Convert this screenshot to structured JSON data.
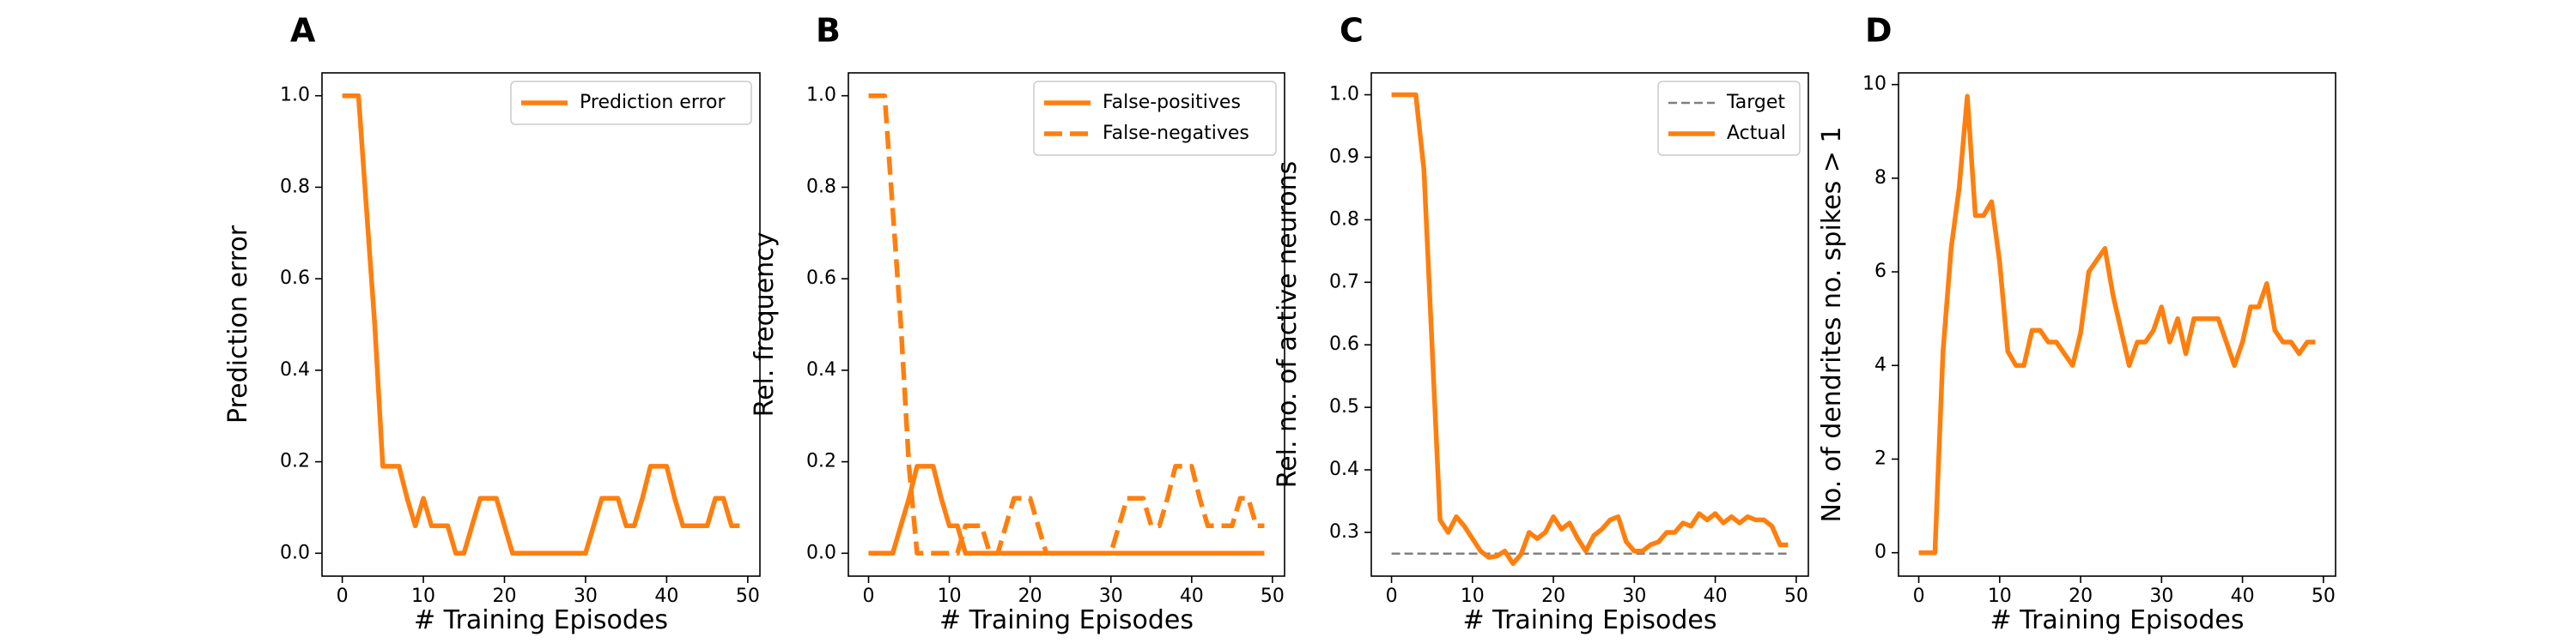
{
  "colors": {
    "orange": "#ff7f0e",
    "target_gray": "#808080",
    "axes": "#000000"
  },
  "chart_data": [
    {
      "panel": "A",
      "type": "line",
      "xlabel": "# Training Episodes",
      "ylabel": "Prediction error",
      "xlim": [
        -2.5,
        51.5
      ],
      "ylim": [
        -0.05,
        1.05
      ],
      "xticks": [
        0,
        10,
        20,
        30,
        40,
        50
      ],
      "yticks": [
        0.0,
        0.2,
        0.4,
        0.6,
        0.8,
        1.0
      ],
      "ytick_labels": [
        "0.0",
        "0.2",
        "0.4",
        "0.6",
        "0.8",
        "1.0"
      ],
      "legend_position": "upper right",
      "series": [
        {
          "name": "Prediction error",
          "style": "solid",
          "x": [
            0,
            1,
            2,
            3,
            4,
            5,
            6,
            7,
            8,
            9,
            10,
            11,
            12,
            13,
            14,
            15,
            16,
            17,
            18,
            19,
            20,
            21,
            22,
            23,
            24,
            25,
            26,
            27,
            28,
            29,
            30,
            31,
            32,
            33,
            34,
            35,
            36,
            37,
            38,
            39,
            40,
            41,
            42,
            43,
            44,
            45,
            46,
            47,
            48,
            49
          ],
          "y": [
            1.0,
            1.0,
            1.0,
            0.75,
            0.5,
            0.19,
            0.19,
            0.19,
            0.12,
            0.06,
            0.12,
            0.06,
            0.06,
            0.06,
            0.0,
            0.0,
            0.06,
            0.12,
            0.12,
            0.12,
            0.06,
            0.0,
            0.0,
            0.0,
            0.0,
            0.0,
            0.0,
            0.0,
            0.0,
            0.0,
            0.0,
            0.06,
            0.12,
            0.12,
            0.12,
            0.06,
            0.06,
            0.12,
            0.19,
            0.19,
            0.19,
            0.12,
            0.06,
            0.06,
            0.06,
            0.06,
            0.12,
            0.12,
            0.06,
            0.06
          ]
        }
      ]
    },
    {
      "panel": "B",
      "type": "line",
      "xlabel": "# Training Episodes",
      "ylabel": "Rel. frequency",
      "xlim": [
        -2.5,
        51.5
      ],
      "ylim": [
        -0.05,
        1.05
      ],
      "xticks": [
        0,
        10,
        20,
        30,
        40,
        50
      ],
      "yticks": [
        0.0,
        0.2,
        0.4,
        0.6,
        0.8,
        1.0
      ],
      "ytick_labels": [
        "0.0",
        "0.2",
        "0.4",
        "0.6",
        "0.8",
        "1.0"
      ],
      "legend_position": "upper right",
      "series": [
        {
          "name": "False-positives",
          "style": "solid",
          "x": [
            0,
            1,
            2,
            3,
            4,
            5,
            6,
            7,
            8,
            9,
            10,
            11,
            12,
            13,
            14,
            15,
            16,
            17,
            18,
            19,
            20,
            21,
            22,
            23,
            24,
            25,
            26,
            27,
            28,
            29,
            30,
            31,
            32,
            33,
            34,
            35,
            36,
            37,
            38,
            39,
            40,
            41,
            42,
            43,
            44,
            45,
            46,
            47,
            48,
            49
          ],
          "y": [
            0.0,
            0.0,
            0.0,
            0.0,
            0.06,
            0.12,
            0.19,
            0.19,
            0.19,
            0.12,
            0.06,
            0.06,
            0.0,
            0.0,
            0.0,
            0.0,
            0.0,
            0.0,
            0.0,
            0.0,
            0.0,
            0.0,
            0.0,
            0.0,
            0.0,
            0.0,
            0.0,
            0.0,
            0.0,
            0.0,
            0.0,
            0.0,
            0.0,
            0.0,
            0.0,
            0.0,
            0.0,
            0.0,
            0.0,
            0.0,
            0.0,
            0.0,
            0.0,
            0.0,
            0.0,
            0.0,
            0.0,
            0.0,
            0.0,
            0.0
          ]
        },
        {
          "name": "False-negatives",
          "style": "dashed",
          "x": [
            0,
            1,
            2,
            3,
            4,
            5,
            6,
            7,
            8,
            9,
            10,
            11,
            12,
            13,
            14,
            15,
            16,
            17,
            18,
            19,
            20,
            21,
            22,
            23,
            24,
            25,
            26,
            27,
            28,
            29,
            30,
            31,
            32,
            33,
            34,
            35,
            36,
            37,
            38,
            39,
            40,
            41,
            42,
            43,
            44,
            45,
            46,
            47,
            48,
            49
          ],
          "y": [
            1.0,
            1.0,
            1.0,
            0.75,
            0.5,
            0.19,
            0.0,
            0.0,
            0.0,
            0.0,
            0.0,
            0.0,
            0.06,
            0.06,
            0.06,
            0.0,
            0.0,
            0.06,
            0.12,
            0.12,
            0.12,
            0.06,
            0.0,
            0.0,
            0.0,
            0.0,
            0.0,
            0.0,
            0.0,
            0.0,
            0.0,
            0.06,
            0.12,
            0.12,
            0.12,
            0.06,
            0.06,
            0.12,
            0.19,
            0.19,
            0.19,
            0.12,
            0.06,
            0.06,
            0.06,
            0.06,
            0.12,
            0.12,
            0.06,
            0.06
          ]
        }
      ]
    },
    {
      "panel": "C",
      "type": "line",
      "xlabel": "# Training Episodes",
      "ylabel": "Rel. no. of active neurons",
      "xlim": [
        -2.5,
        51.5
      ],
      "ylim": [
        0.23,
        1.035
      ],
      "xticks": [
        0,
        10,
        20,
        30,
        40,
        50
      ],
      "yticks": [
        0.3,
        0.4,
        0.5,
        0.6,
        0.7,
        0.8,
        0.9,
        1.0
      ],
      "ytick_labels": [
        "0.3",
        "0.4",
        "0.5",
        "0.6",
        "0.7",
        "0.8",
        "0.9",
        "1.0"
      ],
      "legend_position": "upper right",
      "series": [
        {
          "name": "Target",
          "style": "dashed-thin",
          "x": [
            0,
            49
          ],
          "y": [
            0.266,
            0.266
          ]
        },
        {
          "name": "Actual",
          "style": "solid",
          "x": [
            0,
            1,
            2,
            3,
            4,
            5,
            6,
            7,
            8,
            9,
            10,
            11,
            12,
            13,
            14,
            15,
            16,
            17,
            18,
            19,
            20,
            21,
            22,
            23,
            24,
            25,
            26,
            27,
            28,
            29,
            30,
            31,
            32,
            33,
            34,
            35,
            36,
            37,
            38,
            39,
            40,
            41,
            42,
            43,
            44,
            45,
            46,
            47,
            48,
            49
          ],
          "y": [
            1.0,
            1.0,
            1.0,
            1.0,
            0.88,
            0.6,
            0.32,
            0.3,
            0.325,
            0.31,
            0.29,
            0.27,
            0.26,
            0.262,
            0.27,
            0.25,
            0.265,
            0.3,
            0.29,
            0.3,
            0.325,
            0.305,
            0.315,
            0.29,
            0.27,
            0.295,
            0.305,
            0.32,
            0.325,
            0.285,
            0.27,
            0.27,
            0.28,
            0.285,
            0.3,
            0.3,
            0.315,
            0.31,
            0.33,
            0.32,
            0.33,
            0.315,
            0.325,
            0.315,
            0.325,
            0.32,
            0.32,
            0.31,
            0.28,
            0.28
          ]
        }
      ]
    },
    {
      "panel": "D",
      "type": "line",
      "xlabel": "# Training Episodes",
      "ylabel": "No. of dendrites no. spikes > 1",
      "xlim": [
        -2.5,
        51.5
      ],
      "ylim": [
        -0.5,
        10.25
      ],
      "xticks": [
        0,
        10,
        20,
        30,
        40,
        50
      ],
      "yticks": [
        0,
        2,
        4,
        6,
        8,
        10
      ],
      "ytick_labels": [
        "0",
        "2",
        "4",
        "6",
        "8",
        "10"
      ],
      "legend_position": "",
      "series": [
        {
          "name": "",
          "style": "solid",
          "x": [
            0,
            1,
            2,
            3,
            4,
            5,
            6,
            7,
            8,
            9,
            10,
            11,
            12,
            13,
            14,
            15,
            16,
            17,
            18,
            19,
            20,
            21,
            22,
            23,
            24,
            25,
            26,
            27,
            28,
            29,
            30,
            31,
            32,
            33,
            34,
            35,
            36,
            37,
            38,
            39,
            40,
            41,
            42,
            43,
            44,
            45,
            46,
            47,
            48,
            49
          ],
          "y": [
            0,
            0,
            0,
            4.3,
            6.5,
            7.8,
            9.75,
            7.2,
            7.2,
            7.5,
            6.2,
            4.3,
            4.0,
            4.0,
            4.75,
            4.75,
            4.5,
            4.5,
            4.25,
            4.0,
            4.7,
            6.0,
            6.25,
            6.5,
            5.5,
            4.75,
            4.0,
            4.5,
            4.5,
            4.75,
            5.25,
            4.5,
            5.0,
            4.25,
            5.0,
            5.0,
            5.0,
            5.0,
            4.5,
            4.0,
            4.5,
            5.25,
            5.25,
            5.75,
            4.75,
            4.5,
            4.5,
            4.25,
            4.5,
            4.5
          ]
        }
      ]
    }
  ]
}
